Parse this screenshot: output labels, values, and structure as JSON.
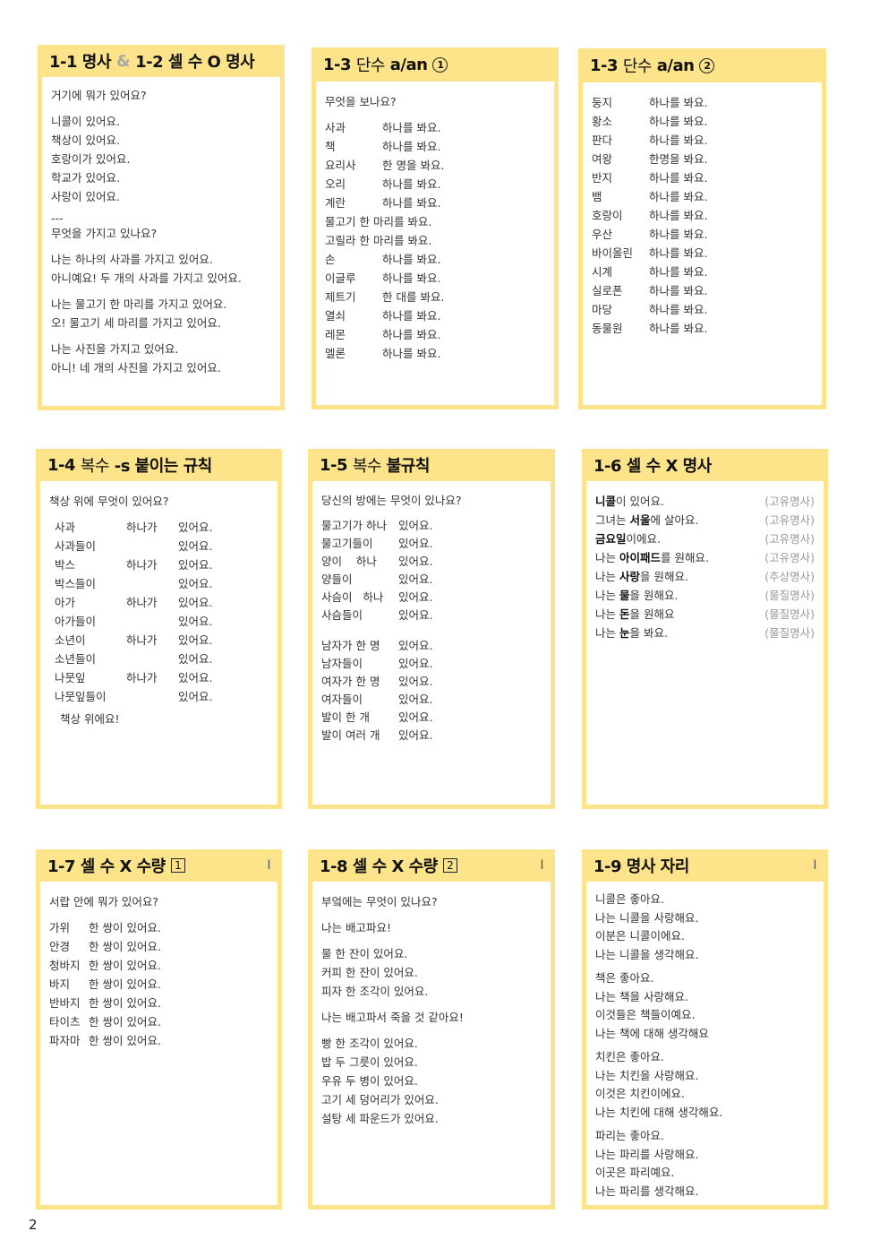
{
  "page_number": "2",
  "cards": {
    "c11": {
      "t1": "1-1 명사",
      "amp": "&",
      "t2": "1-2 셀 수 O 명사",
      "lines": [
        "거기에 뭐가 있어요?",
        "니콜이 있어요.",
        "책상이 있어요.",
        "호랑이가 있어요.",
        "학교가 있어요.",
        "사랑이 있어요.",
        "---",
        "무엇을 가지고 있나요?",
        "나는 하나의 사과를 가지고 있어요.",
        "아니예요! 두 개의 사과를 가지고 있어요.",
        "나는 물고기 한 마리를 가지고 있어요.",
        "오! 물고기 세 마리를 가지고 있어요.",
        "나는 사진을 가지고 있어요.",
        "아니! 네 개의 사진을 가지고 있어요."
      ]
    },
    "c13a": {
      "t1": "1-3",
      "t2": "단수",
      "t3": "a/an",
      "mark": "1",
      "q": "무엇을 보나요?",
      "rows": [
        [
          "사과",
          "하나를 봐요."
        ],
        [
          "책",
          "하나를 봐요."
        ],
        [
          "요리사",
          "한 명을 봐요."
        ],
        [
          "오리",
          "하나를 봐요."
        ],
        [
          "계란",
          "하나를 봐요."
        ],
        [
          "물고기 한 마리를 봐요.",
          ""
        ],
        [
          "고릴라 한 마리를 봐요.",
          ""
        ],
        [
          "손",
          "하나를 봐요."
        ],
        [
          "이글루",
          "하나를 봐요."
        ],
        [
          "제트기",
          "한 대를 봐요."
        ],
        [
          "열쇠",
          "하나를 봐요."
        ],
        [
          "레몬",
          "하나를 봐요."
        ],
        [
          "멜론",
          "하나를 봐요."
        ]
      ]
    },
    "c13b": {
      "t1": "1-3",
      "t2": "단수",
      "t3": "a/an",
      "mark": "2",
      "rows": [
        [
          "둥지",
          "하나를 봐요."
        ],
        [
          "황소",
          "하나를 봐요."
        ],
        [
          "판다",
          "하나를 봐요."
        ],
        [
          "여왕",
          "한명을 봐요."
        ],
        [
          "반지",
          "하나를 봐요."
        ],
        [
          "뱀",
          "하나를 봐요."
        ],
        [
          "호랑이",
          "하나를 봐요."
        ],
        [
          "우산",
          "하나를 봐요."
        ],
        [
          "바이올린",
          "하나를 봐요."
        ],
        [
          "시계",
          "하나를 봐요."
        ],
        [
          "실로폰",
          "하나를 봐요."
        ],
        [
          "마당",
          "하나를 봐요."
        ],
        [
          "동물원",
          "하나를 봐요."
        ]
      ]
    },
    "c14": {
      "t1": "1-4",
      "t2": "복수",
      "t3": "-s 붙이는 규칙",
      "q": "책상 위에 무엇이 있어요?",
      "rows": [
        [
          "사과",
          "하나가",
          "있어요."
        ],
        [
          "사과들이",
          "",
          "있어요."
        ],
        [
          "박스",
          "하나가",
          "있어요."
        ],
        [
          "박스들이",
          "",
          "있어요."
        ],
        [
          "아가",
          "하나가",
          "있어요."
        ],
        [
          "아가들이",
          "",
          "있어요."
        ],
        [
          "소년이",
          "하나가",
          "있어요."
        ],
        [
          "소년들이",
          "",
          "있어요."
        ],
        [
          "나뭇잎",
          "하나가",
          "있어요."
        ],
        [
          "나뭇잎들이",
          "",
          "있어요."
        ]
      ],
      "end": "책상 위에요!"
    },
    "c15": {
      "t1": "1-5",
      "t2": "복수",
      "t3": "불규칙",
      "q": "당신의 방에는 무엇이 있나요?",
      "rows1": [
        [
          "물고기가 하나",
          "있어요."
        ],
        [
          "물고기들이",
          "있어요."
        ],
        [
          "양이    하나",
          "있어요."
        ],
        [
          "양들이",
          "있어요."
        ],
        [
          "사슴이   하나",
          "있어요."
        ],
        [
          "사슴들이",
          "있어요."
        ]
      ],
      "rows2": [
        [
          "남자가 한 명",
          "있어요."
        ],
        [
          "남자들이",
          "있어요."
        ],
        [
          "여자가 한 명",
          "있어요."
        ],
        [
          "여자들이",
          "있어요."
        ],
        [
          "발이 한 개",
          "있어요."
        ],
        [
          "발이 여러 개",
          "있어요."
        ]
      ]
    },
    "c16": {
      "t1": "1-6 셀 수 X 명사",
      "rows": [
        {
          "pre": "",
          "bold": "니콜",
          "post": "이 있어요.",
          "src": "(고유명사)"
        },
        {
          "pre": "그녀는 ",
          "bold": "서울",
          "post": "에 살아요.",
          "src": "(고유명사)"
        },
        {
          "pre": "",
          "bold": "금요일",
          "post": "이에요.",
          "src": "(고유명사)"
        },
        {
          "pre": "나는 ",
          "bold": "아이패드",
          "post": "를 원해요.",
          "src": "(고유명사)"
        },
        {
          "pre": "나는 ",
          "bold": "사랑",
          "post": "을 원해요.",
          "src": "(추상명사)"
        },
        {
          "pre": "나는 ",
          "bold": "물",
          "post": "을 원해요.",
          "src": "(물질명사)"
        },
        {
          "pre": "나는 ",
          "bold": "돈",
          "post": "을 원해요",
          "src": "(물질명사)"
        },
        {
          "pre": "나는 ",
          "bold": "눈",
          "post": "을 봐요.",
          "src": "(물질명사)"
        }
      ]
    },
    "c17": {
      "t1": "1-7 셀 수 X 수량",
      "box": "1",
      "mark": "I",
      "q": "서랍 안에 뭐가 있어요?",
      "rows": [
        [
          "가위",
          "한 쌍이 있어요."
        ],
        [
          "안경",
          "한 쌍이 있어요."
        ],
        [
          "청바지",
          "한 쌍이 있어요."
        ],
        [
          "바지",
          "한 쌍이 있어요."
        ],
        [
          "반바지",
          "한 쌍이 있어요."
        ],
        [
          "타이츠",
          "한 쌍이 있어요."
        ],
        [
          "파자마",
          "한 쌍이 있어요."
        ]
      ]
    },
    "c18": {
      "t1": "1-8 셀 수 X 수량",
      "box": "2",
      "mark": "I",
      "lines": [
        "부엌에는 무엇이 있나요?",
        "나는 배고파요!",
        "물 한 잔이 있어요.",
        "커피 한 잔이 있어요.",
        "피자 한 조각이 있어요.",
        "나는 배고파서 죽을 것 같아요!",
        "빵 한 조각이 있어요.",
        "밥 두 그릇이 있어요.",
        "우유 두 병이 있어요.",
        "고기 세 덩어리가 있어요.",
        "설탕 세 파운드가 있어요."
      ]
    },
    "c19": {
      "t1": "1-9 명사 자리",
      "mark": "I",
      "lines": [
        "니콜은 좋아요.",
        "나는 니콜을 사랑해요.",
        "이분은 니콜이에요.",
        "나는 니콜을 생각해요.",
        "책은 좋아요.",
        "나는 책을 사랑해요.",
        "이것들은 책들이예요.",
        "나는 책에 대해 생각해요",
        "치킨은 좋아요.",
        "나는 치킨을 사랑해요.",
        "이것은 치킨이에요.",
        "나는 치킨에 대해 생각해요.",
        "파리는 좋아요.",
        "나는 파리를 사랑해요.",
        "이곳은 파리예요.",
        "나는 파리를 생각해요."
      ]
    }
  }
}
